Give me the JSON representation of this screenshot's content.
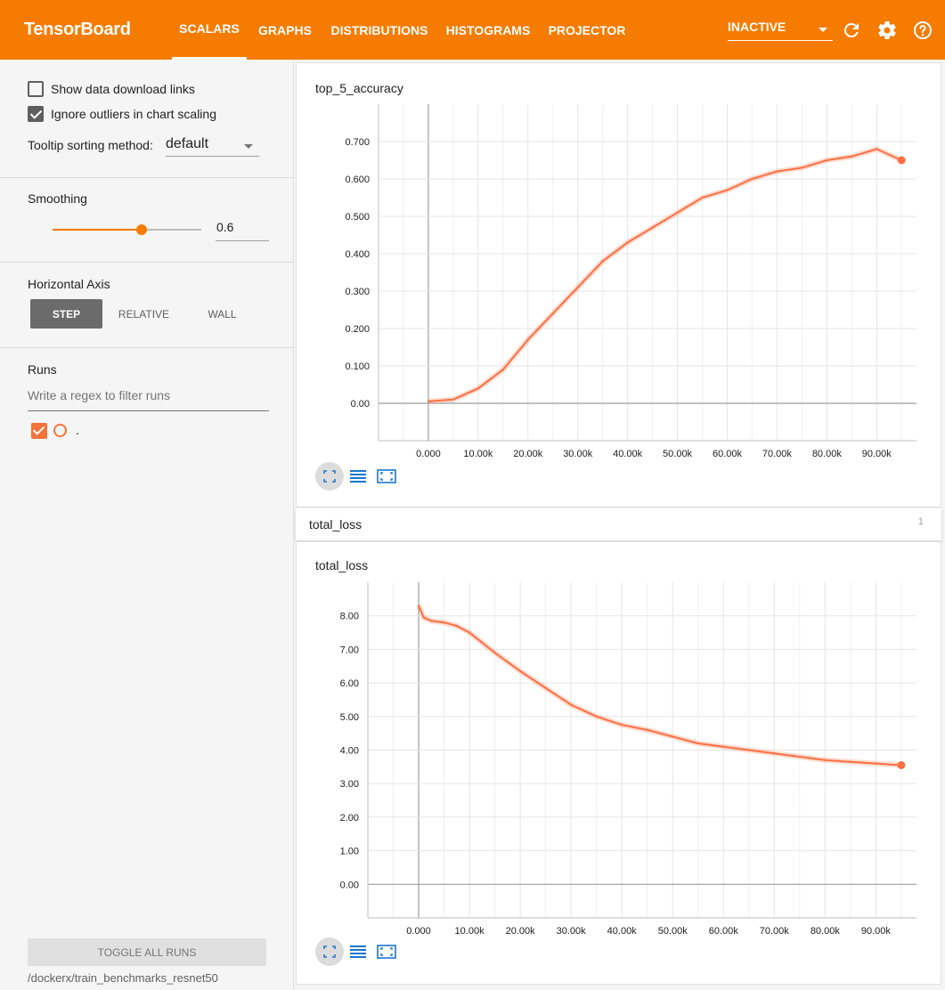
{
  "header": {
    "brand": "TensorBoard",
    "tabs": [
      "SCALARS",
      "GRAPHS",
      "DISTRIBUTIONS",
      "HISTOGRAMS",
      "PROJECTOR"
    ],
    "active_tab": "SCALARS",
    "status_select": "INACTIVE",
    "icons": [
      "refresh-icon",
      "settings-icon",
      "help-icon"
    ]
  },
  "sidebar": {
    "show_download_links": {
      "label": "Show data download links",
      "checked": false
    },
    "ignore_outliers": {
      "label": "Ignore outliers in chart scaling",
      "checked": true
    },
    "tooltip_sorting": {
      "label": "Tooltip sorting method:",
      "value": "default"
    },
    "smoothing": {
      "label": "Smoothing",
      "value": "0.6",
      "fraction": 0.6
    },
    "horizontal_axis": {
      "label": "Horizontal Axis",
      "options": [
        "STEP",
        "RELATIVE",
        "WALL"
      ],
      "selected": "STEP"
    },
    "runs": {
      "label": "Runs",
      "filter_placeholder": "Write a regex to filter runs",
      "items": [
        {
          "name": ".",
          "checked": true
        }
      ]
    },
    "toggle_all_label": "TOGGLE ALL RUNS",
    "logdir": "/dockerx/train_benchmarks_resnet50"
  },
  "group": {
    "name": "total_loss",
    "count": "1"
  },
  "chart_data": [
    {
      "type": "line",
      "title": "top_5_accuracy",
      "xlabel": "",
      "ylabel": "",
      "xlim": [
        -10000,
        98000
      ],
      "ylim": [
        -0.1,
        0.8
      ],
      "x_ticks": [
        "0.000",
        "10.00k",
        "20.00k",
        "30.00k",
        "40.00k",
        "50.00k",
        "60.00k",
        "70.00k",
        "80.00k",
        "90.00k"
      ],
      "y_ticks": [
        "0.00",
        "0.100",
        "0.200",
        "0.300",
        "0.400",
        "0.500",
        "0.600",
        "0.700"
      ],
      "grid": true,
      "series": [
        {
          "color": "#ff7043",
          "x": [
            0,
            5000,
            10000,
            15000,
            20000,
            25000,
            30000,
            35000,
            40000,
            45000,
            50000,
            55000,
            60000,
            65000,
            70000,
            75000,
            80000,
            85000,
            90000,
            95000
          ],
          "y": [
            0.005,
            0.01,
            0.04,
            0.09,
            0.17,
            0.24,
            0.31,
            0.38,
            0.43,
            0.47,
            0.51,
            0.55,
            0.57,
            0.6,
            0.62,
            0.63,
            0.65,
            0.66,
            0.68,
            0.65
          ]
        }
      ]
    },
    {
      "type": "line",
      "title": "total_loss",
      "xlabel": "",
      "ylabel": "",
      "xlim": [
        -10000,
        98000
      ],
      "ylim": [
        -1,
        9
      ],
      "x_ticks": [
        "0.000",
        "10.00k",
        "20.00k",
        "30.00k",
        "40.00k",
        "50.00k",
        "60.00k",
        "70.00k",
        "80.00k",
        "90.00k"
      ],
      "y_ticks": [
        "0.00",
        "1.00",
        "2.00",
        "3.00",
        "4.00",
        "5.00",
        "6.00",
        "7.00",
        "8.00"
      ],
      "grid": true,
      "series": [
        {
          "color": "#ff7043",
          "x": [
            0,
            1000,
            2500,
            5000,
            7500,
            10000,
            12500,
            15000,
            20000,
            25000,
            30000,
            35000,
            40000,
            45000,
            50000,
            55000,
            60000,
            65000,
            70000,
            75000,
            80000,
            85000,
            90000,
            95000
          ],
          "y": [
            8.3,
            7.95,
            7.85,
            7.8,
            7.7,
            7.5,
            7.2,
            6.9,
            6.35,
            5.85,
            5.35,
            5.0,
            4.75,
            4.6,
            4.4,
            4.2,
            4.1,
            4.0,
            3.9,
            3.8,
            3.7,
            3.65,
            3.6,
            3.55
          ]
        }
      ]
    }
  ]
}
